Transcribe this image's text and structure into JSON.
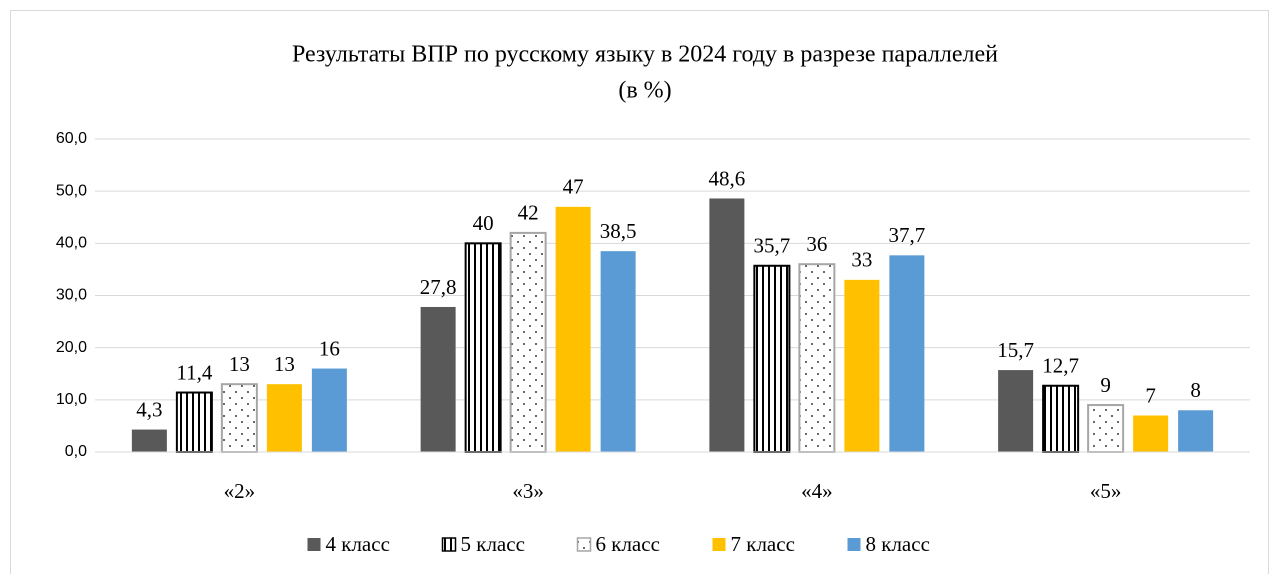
{
  "chart_data": {
    "type": "bar",
    "title": "Результаты ВПР по русскому языку в 2024 году в разрезе параллелей",
    "subtitle": "(в %)",
    "categories": [
      "«2»",
      "«3»",
      "«4»",
      "«5»"
    ],
    "series": [
      {
        "name": "4 класс",
        "color": "#595959",
        "values": [
          4.3,
          27.8,
          48.6,
          15.7
        ],
        "value_labels": [
          "4,3",
          "27,8",
          "48,6",
          "15,7"
        ]
      },
      {
        "name": "5 класс",
        "color": "#000000",
        "pattern": "vertical-stripes",
        "values": [
          11.4,
          40,
          35.7,
          12.7
        ],
        "value_labels": [
          "11,4",
          "40",
          "35,7",
          "12,7"
        ]
      },
      {
        "name": "6 класс",
        "color": "#a6a6a6",
        "pattern": "dots",
        "values": [
          13,
          42,
          36,
          9
        ],
        "value_labels": [
          "13",
          "42",
          "36",
          "9"
        ]
      },
      {
        "name": "7 класс",
        "color": "#ffc000",
        "values": [
          13,
          47,
          33,
          7
        ],
        "value_labels": [
          "13",
          "47",
          "33",
          "7"
        ]
      },
      {
        "name": "8 класс",
        "color": "#5b9bd5",
        "values": [
          16,
          38.5,
          37.7,
          8
        ],
        "value_labels": [
          "16",
          "38,5",
          "37,7",
          "8"
        ]
      }
    ],
    "ylim": [
      0,
      60
    ],
    "yticks": [
      {
        "value": 0,
        "label": "0,0"
      },
      {
        "value": 10,
        "label": "10,0"
      },
      {
        "value": 20,
        "label": "20,0"
      },
      {
        "value": 30,
        "label": "30,0"
      },
      {
        "value": 40,
        "label": "40,0"
      },
      {
        "value": 50,
        "label": "50,0"
      },
      {
        "value": 60,
        "label": "60,0"
      }
    ],
    "grid": true,
    "legend": "bottom"
  }
}
